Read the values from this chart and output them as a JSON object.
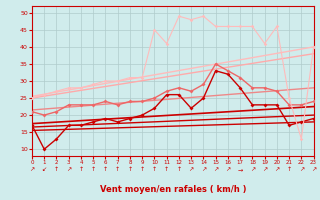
{
  "xlabel": "Vent moyen/en rafales ( km/h )",
  "xlim": [
    0,
    23
  ],
  "ylim": [
    8,
    52
  ],
  "yticks": [
    10,
    15,
    20,
    25,
    30,
    35,
    40,
    45,
    50
  ],
  "xticks": [
    0,
    1,
    2,
    3,
    4,
    5,
    6,
    7,
    8,
    9,
    10,
    11,
    12,
    13,
    14,
    15,
    16,
    17,
    18,
    19,
    20,
    21,
    22,
    23
  ],
  "bg_color": "#d0ecec",
  "grid_color": "#b0cccc",
  "lines": [
    {
      "x": [
        0,
        23
      ],
      "y": [
        15.5,
        18.0
      ],
      "color": "#cc0000",
      "lw": 1.0,
      "marker": null,
      "ms": 0
    },
    {
      "x": [
        0,
        23
      ],
      "y": [
        16.5,
        20.0
      ],
      "color": "#cc0000",
      "lw": 1.0,
      "marker": null,
      "ms": 0
    },
    {
      "x": [
        0,
        23
      ],
      "y": [
        17.5,
        22.5
      ],
      "color": "#cc0000",
      "lw": 1.2,
      "marker": null,
      "ms": 0
    },
    {
      "x": [
        0,
        23
      ],
      "y": [
        21.5,
        28.0
      ],
      "color": "#ee8888",
      "lw": 1.0,
      "marker": null,
      "ms": 0
    },
    {
      "x": [
        0,
        23
      ],
      "y": [
        25.0,
        38.0
      ],
      "color": "#ffaaaa",
      "lw": 1.0,
      "marker": null,
      "ms": 0
    },
    {
      "x": [
        0,
        23
      ],
      "y": [
        25.5,
        40.0
      ],
      "color": "#ffbbbb",
      "lw": 1.0,
      "marker": null,
      "ms": 0
    },
    {
      "x": [
        0,
        1,
        2,
        3,
        4,
        5,
        6,
        7,
        8,
        9,
        10,
        11,
        12,
        13,
        14,
        15,
        16,
        17,
        18,
        19,
        20,
        21,
        22,
        23
      ],
      "y": [
        17,
        10,
        13,
        17,
        17,
        18,
        19,
        18,
        19,
        20,
        22,
        26,
        26,
        22,
        25,
        33,
        32,
        28,
        23,
        23,
        23,
        17,
        18,
        19
      ],
      "color": "#cc0000",
      "lw": 1.0,
      "marker": "D",
      "ms": 2.0
    },
    {
      "x": [
        0,
        1,
        2,
        3,
        4,
        5,
        6,
        7,
        8,
        9,
        10,
        11,
        12,
        13,
        14,
        15,
        16,
        17,
        18,
        19,
        20,
        21,
        22,
        23
      ],
      "y": [
        21,
        20,
        21,
        23,
        23,
        23,
        24,
        23,
        24,
        24,
        25,
        27,
        28,
        27,
        29,
        35,
        33,
        31,
        28,
        28,
        27,
        23,
        23,
        24
      ],
      "color": "#ee6666",
      "lw": 1.0,
      "marker": "D",
      "ms": 2.0
    },
    {
      "x": [
        0,
        1,
        2,
        3,
        4,
        5,
        6,
        7,
        8,
        9,
        10,
        11,
        12,
        13,
        14,
        15,
        16,
        17,
        18,
        19,
        20,
        21,
        22,
        23
      ],
      "y": [
        25,
        26,
        27,
        28,
        28,
        29,
        30,
        30,
        31,
        31,
        45,
        41,
        49,
        48,
        49,
        46,
        46,
        46,
        46,
        41,
        46,
        25,
        13,
        40
      ],
      "color": "#ffbbbb",
      "lw": 0.8,
      "marker": "D",
      "ms": 1.8
    }
  ],
  "arrows": [
    "↗",
    "↙",
    "↑",
    "↗",
    "↑",
    "↑",
    "↑",
    "↑",
    "↑",
    "↑",
    "↑",
    "↑",
    "↑",
    "↗",
    "↗",
    "↗",
    "↗",
    "→",
    "↗",
    "↗",
    "↗",
    "↑",
    "↗",
    "↗"
  ]
}
